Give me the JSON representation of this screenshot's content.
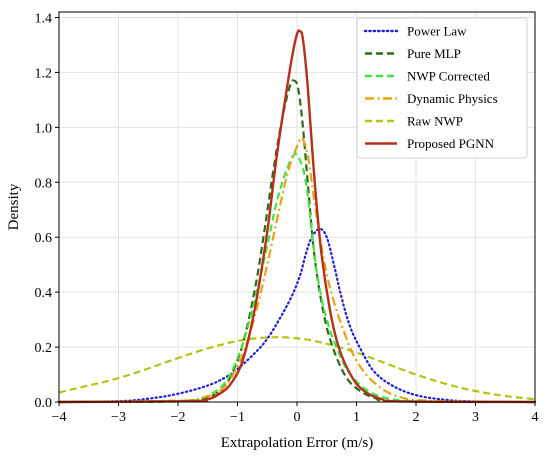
{
  "chart_data": {
    "type": "line",
    "title": "",
    "xlabel": "Extrapolation Error (m/s)",
    "ylabel": "Density",
    "xlim": [
      -4,
      4
    ],
    "ylim": [
      0,
      1.42
    ],
    "xticks": [
      "−4",
      "−3",
      "−2",
      "−1",
      "0",
      "1",
      "2",
      "3",
      "4"
    ],
    "yticks": [
      "0.0",
      "0.2",
      "0.4",
      "0.6",
      "0.8",
      "1.0",
      "1.2",
      "1.4"
    ],
    "grid": true,
    "legend_position": "top-right",
    "series": [
      {
        "name": "Power Law",
        "color": "#1f1fd6",
        "dash": "dotted",
        "points": [
          [
            -4,
            0.0
          ],
          [
            -3,
            0.003
          ],
          [
            -2.5,
            0.012
          ],
          [
            -2,
            0.03
          ],
          [
            -1.5,
            0.06
          ],
          [
            -1.2,
            0.09
          ],
          [
            -1,
            0.12
          ],
          [
            -0.7,
            0.18
          ],
          [
            -0.5,
            0.23
          ],
          [
            -0.3,
            0.3
          ],
          [
            -0.1,
            0.38
          ],
          [
            0.05,
            0.46
          ],
          [
            0.15,
            0.54
          ],
          [
            0.25,
            0.6
          ],
          [
            0.38,
            0.63
          ],
          [
            0.5,
            0.6
          ],
          [
            0.62,
            0.5
          ],
          [
            0.75,
            0.38
          ],
          [
            0.9,
            0.27
          ],
          [
            1.1,
            0.18
          ],
          [
            1.3,
            0.11
          ],
          [
            1.6,
            0.06
          ],
          [
            2,
            0.025
          ],
          [
            2.5,
            0.008
          ],
          [
            3,
            0.002
          ],
          [
            4,
            0.0
          ]
        ]
      },
      {
        "name": "Pure MLP",
        "color": "#2d6a18",
        "dash": "dashed",
        "points": [
          [
            -4,
            0.0
          ],
          [
            -2,
            0.002
          ],
          [
            -1.6,
            0.01
          ],
          [
            -1.3,
            0.04
          ],
          [
            -1.1,
            0.1
          ],
          [
            -0.9,
            0.22
          ],
          [
            -0.7,
            0.42
          ],
          [
            -0.55,
            0.62
          ],
          [
            -0.4,
            0.84
          ],
          [
            -0.25,
            1.03
          ],
          [
            -0.12,
            1.15
          ],
          [
            -0.05,
            1.17
          ],
          [
            0.02,
            1.14
          ],
          [
            0.1,
            1.0
          ],
          [
            0.2,
            0.75
          ],
          [
            0.3,
            0.52
          ],
          [
            0.45,
            0.32
          ],
          [
            0.6,
            0.2
          ],
          [
            0.8,
            0.1
          ],
          [
            1.0,
            0.05
          ],
          [
            1.3,
            0.015
          ],
          [
            1.7,
            0.003
          ],
          [
            4,
            0.0
          ]
        ]
      },
      {
        "name": "NWP Corrected",
        "color": "#44e244",
        "dash": "dashed",
        "points": [
          [
            -4,
            0.0
          ],
          [
            -2,
            0.004
          ],
          [
            -1.6,
            0.015
          ],
          [
            -1.3,
            0.05
          ],
          [
            -1.1,
            0.11
          ],
          [
            -0.9,
            0.22
          ],
          [
            -0.7,
            0.38
          ],
          [
            -0.5,
            0.57
          ],
          [
            -0.35,
            0.72
          ],
          [
            -0.2,
            0.83
          ],
          [
            -0.05,
            0.9
          ],
          [
            0.05,
            0.88
          ],
          [
            0.15,
            0.8
          ],
          [
            0.25,
            0.62
          ],
          [
            0.35,
            0.45
          ],
          [
            0.5,
            0.3
          ],
          [
            0.7,
            0.18
          ],
          [
            0.9,
            0.1
          ],
          [
            1.2,
            0.04
          ],
          [
            1.6,
            0.01
          ],
          [
            2.2,
            0.002
          ],
          [
            4,
            0.0
          ]
        ]
      },
      {
        "name": "Dynamic Physics",
        "color": "#e8a312",
        "dash": "dashdot",
        "points": [
          [
            -4,
            0.0
          ],
          [
            -2,
            0.005
          ],
          [
            -1.6,
            0.015
          ],
          [
            -1.3,
            0.04
          ],
          [
            -1.1,
            0.09
          ],
          [
            -0.9,
            0.18
          ],
          [
            -0.7,
            0.32
          ],
          [
            -0.5,
            0.5
          ],
          [
            -0.3,
            0.7
          ],
          [
            -0.15,
            0.84
          ],
          [
            0,
            0.93
          ],
          [
            0.08,
            0.96
          ],
          [
            0.18,
            0.9
          ],
          [
            0.3,
            0.72
          ],
          [
            0.45,
            0.52
          ],
          [
            0.6,
            0.38
          ],
          [
            0.8,
            0.25
          ],
          [
            1.0,
            0.15
          ],
          [
            1.3,
            0.07
          ],
          [
            1.7,
            0.02
          ],
          [
            2.3,
            0.004
          ],
          [
            4,
            0.0
          ]
        ]
      },
      {
        "name": "Raw NWP",
        "color": "#b5c414",
        "dash": "dashed",
        "points": [
          [
            -4,
            0.035
          ],
          [
            -3.5,
            0.06
          ],
          [
            -3,
            0.087
          ],
          [
            -2.5,
            0.122
          ],
          [
            -2,
            0.16
          ],
          [
            -1.5,
            0.195
          ],
          [
            -1,
            0.222
          ],
          [
            -0.5,
            0.235
          ],
          [
            0,
            0.232
          ],
          [
            0.5,
            0.212
          ],
          [
            1,
            0.18
          ],
          [
            1.5,
            0.14
          ],
          [
            2,
            0.1
          ],
          [
            2.5,
            0.066
          ],
          [
            3,
            0.04
          ],
          [
            3.5,
            0.022
          ],
          [
            4,
            0.01
          ]
        ]
      },
      {
        "name": "Proposed PGNN",
        "color": "#b3311b",
        "dash": "solid",
        "points": [
          [
            -4,
            0.0
          ],
          [
            -1.8,
            0.003
          ],
          [
            -1.5,
            0.01
          ],
          [
            -1.3,
            0.03
          ],
          [
            -1.1,
            0.07
          ],
          [
            -0.9,
            0.16
          ],
          [
            -0.7,
            0.35
          ],
          [
            -0.5,
            0.62
          ],
          [
            -0.35,
            0.88
          ],
          [
            -0.2,
            1.1
          ],
          [
            -0.08,
            1.26
          ],
          [
            0.0,
            1.34
          ],
          [
            0.05,
            1.35
          ],
          [
            0.1,
            1.32
          ],
          [
            0.18,
            1.15
          ],
          [
            0.28,
            0.85
          ],
          [
            0.4,
            0.56
          ],
          [
            0.55,
            0.34
          ],
          [
            0.7,
            0.2
          ],
          [
            0.9,
            0.1
          ],
          [
            1.1,
            0.045
          ],
          [
            1.4,
            0.012
          ],
          [
            1.8,
            0.002
          ],
          [
            4,
            0.0
          ]
        ]
      }
    ]
  }
}
